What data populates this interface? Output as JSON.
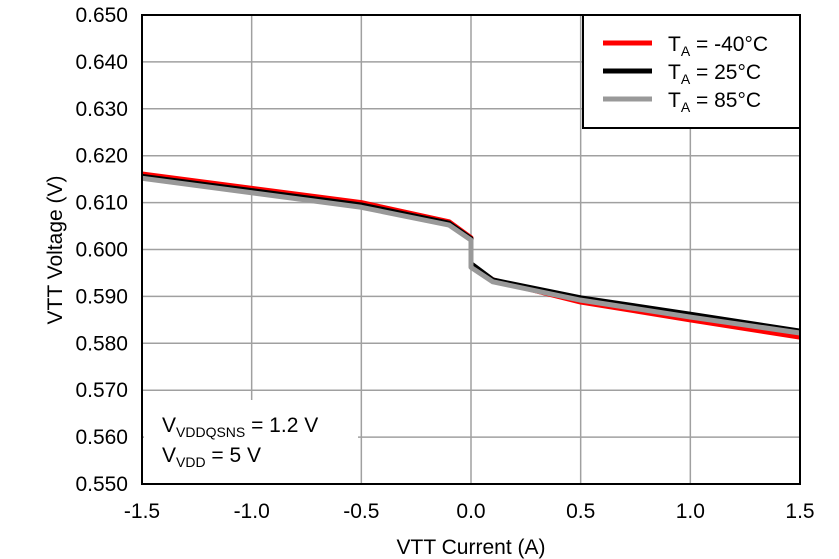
{
  "chart_data": {
    "type": "line",
    "xlabel": "VTT Current (A)",
    "ylabel": "VTT Voltage (V)",
    "xlim": [
      -1.5,
      1.5
    ],
    "ylim": [
      0.55,
      0.65
    ],
    "xticks": [
      "-1.5",
      "-1.0",
      "-0.5",
      "0.0",
      "0.5",
      "1.0",
      "1.5"
    ],
    "yticks": [
      "0.550",
      "0.560",
      "0.570",
      "0.580",
      "0.590",
      "0.600",
      "0.610",
      "0.620",
      "0.630",
      "0.640",
      "0.650"
    ],
    "grid": true,
    "legend_position": "top-right",
    "series": [
      {
        "name_main": "T",
        "name_sub": "A",
        "name_rest": " = -40°C",
        "color": "#ff0000",
        "x": [
          -1.5,
          -0.5,
          -0.1,
          0,
          0,
          0.1,
          0.5,
          1.0,
          1.5
        ],
        "y": [
          0.6161,
          0.61,
          0.6059,
          0.6025,
          0.5967,
          0.5935,
          0.5888,
          0.585,
          0.5813
        ]
      },
      {
        "name_main": "T",
        "name_sub": "A",
        "name_rest": " = 25°C",
        "color": "#000000",
        "x": [
          -1.5,
          -0.5,
          -0.1,
          0,
          0,
          0.1,
          0.5,
          1.0,
          1.5
        ],
        "y": [
          0.6156,
          0.6095,
          0.6056,
          0.6023,
          0.597,
          0.5935,
          0.5897,
          0.5862,
          0.5826
        ]
      },
      {
        "name_main": "T",
        "name_sub": "A",
        "name_rest": " = 85°C",
        "color": "#999999",
        "x": [
          -1.5,
          -0.5,
          -0.1,
          0,
          0,
          0.1,
          0.5,
          1.0,
          1.5
        ],
        "y": [
          0.6152,
          0.609,
          0.6052,
          0.602,
          0.5962,
          0.5931,
          0.5892,
          0.5856,
          0.5822
        ]
      }
    ],
    "annotations": [
      {
        "main": "V",
        "sub": "VDDQSNS",
        "rest": " = 1.2 V"
      },
      {
        "main": "V",
        "sub": "VDD",
        "rest": " = 5 V"
      }
    ]
  }
}
